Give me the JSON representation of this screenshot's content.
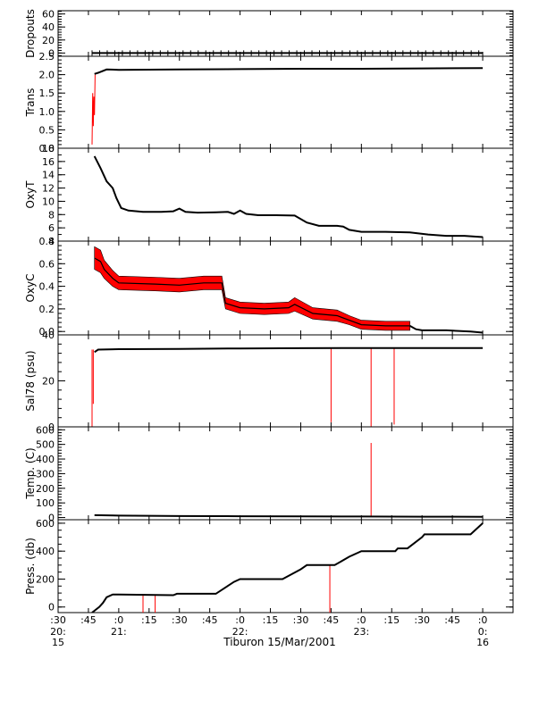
{
  "chart_data": {
    "type": "line",
    "title": "",
    "xlabel": "Tiburon 15/Mar/2001",
    "x_ticks": [
      {
        "h": 20.5,
        "top": ":30",
        "bottom": [
          "20:",
          "15"
        ]
      },
      {
        "h": 20.75,
        "top": ":45",
        "bottom": []
      },
      {
        "h": 21.0,
        "top": ":0",
        "bottom": [
          "21:"
        ]
      },
      {
        "h": 21.25,
        "top": ":15",
        "bottom": []
      },
      {
        "h": 21.5,
        "top": ":30",
        "bottom": []
      },
      {
        "h": 21.75,
        "top": ":45",
        "bottom": []
      },
      {
        "h": 22.0,
        "top": ":0",
        "bottom": [
          "22:"
        ]
      },
      {
        "h": 22.25,
        "top": ":15",
        "bottom": []
      },
      {
        "h": 22.5,
        "top": ":30",
        "bottom": []
      },
      {
        "h": 22.75,
        "top": ":45",
        "bottom": []
      },
      {
        "h": 23.0,
        "top": ":0",
        "bottom": [
          "23:"
        ]
      },
      {
        "h": 23.25,
        "top": ":15",
        "bottom": []
      },
      {
        "h": 23.5,
        "top": ":30",
        "bottom": []
      },
      {
        "h": 23.75,
        "top": ":45",
        "bottom": []
      },
      {
        "h": 24.0,
        "top": ":0",
        "bottom": [
          "0:",
          "16"
        ]
      }
    ],
    "xlim": [
      20.5,
      24.25
    ],
    "colors": {
      "primary": "#000000",
      "secondary": "#ff0000"
    },
    "panels": [
      {
        "ylabel": "Dropouts",
        "ylim": [
          -5,
          65
        ],
        "yticks": [
          0,
          20,
          40,
          60
        ],
        "ytick_labels": [
          "0",
          "20",
          "40",
          "60"
        ],
        "minor": 5,
        "series": [
          {
            "color": "black",
            "marker": "+",
            "x": [
              20.78,
              21.0,
              21.25,
              21.5,
              21.75,
              22.0,
              22.25,
              22.5,
              22.75,
              23.0,
              23.25,
              23.5,
              23.75,
              24.0
            ],
            "y": [
              0,
              0,
              0,
              0,
              0,
              0,
              0,
              0,
              0,
              0,
              0,
              0,
              0,
              0
            ]
          }
        ]
      },
      {
        "ylabel": "Trans",
        "ylim": [
          0,
          2.5
        ],
        "yticks": [
          0.0,
          0.5,
          1.0,
          1.5,
          2.0,
          2.5
        ],
        "ytick_labels": [
          "0.0",
          "0.5",
          "1.0",
          "1.5",
          "2.0",
          "2.5"
        ],
        "minor": 5,
        "series": [
          {
            "color": "red",
            "x": [
              20.78,
              20.785,
              20.79,
              20.795,
              20.8,
              20.805
            ],
            "y": [
              0.1,
              1.5,
              0.6,
              1.4,
              0.9,
              2.0
            ]
          },
          {
            "color": "black",
            "x": [
              20.8,
              20.83,
              20.9,
              21.0,
              21.5,
              22.0,
              22.5,
              23.0,
              23.5,
              24.0
            ],
            "y": [
              2.02,
              2.05,
              2.14,
              2.13,
              2.14,
              2.15,
              2.16,
              2.16,
              2.17,
              2.18
            ]
          }
        ]
      },
      {
        "ylabel": "OxyT",
        "ylim": [
          4,
          18
        ],
        "yticks": [
          4,
          6,
          8,
          10,
          12,
          14,
          16,
          18
        ],
        "ytick_labels": [
          "4",
          "6",
          "8",
          "10",
          "12",
          "14",
          "16",
          "18"
        ],
        "minor": 2,
        "series": [
          {
            "color": "black",
            "x": [
              20.8,
              20.85,
              20.9,
              20.95,
              20.98,
              21.02,
              21.08,
              21.2,
              21.35,
              21.45,
              21.5,
              21.55,
              21.65,
              21.8,
              21.9,
              21.95,
              22.0,
              22.05,
              22.15,
              22.3,
              22.45,
              22.55,
              22.65,
              22.8,
              22.85,
              22.9,
              23.0,
              23.2,
              23.4,
              23.55,
              23.7,
              23.85,
              24.0
            ],
            "y": [
              16.8,
              15.0,
              13.0,
              12.0,
              10.5,
              9.0,
              8.6,
              8.4,
              8.4,
              8.5,
              8.9,
              8.4,
              8.3,
              8.35,
              8.4,
              8.1,
              8.6,
              8.1,
              7.9,
              7.9,
              7.85,
              6.8,
              6.3,
              6.3,
              6.2,
              5.7,
              5.4,
              5.4,
              5.3,
              5.0,
              4.8,
              4.8,
              4.6
            ]
          }
        ]
      },
      {
        "ylabel": "OxyC",
        "ylim": [
          -0.03,
          0.8
        ],
        "yticks": [
          0.0,
          0.2,
          0.4,
          0.6,
          0.8
        ],
        "ytick_labels": [
          "0.0",
          "0.2",
          "0.4",
          "0.6",
          "0.8"
        ],
        "minor": 5,
        "series": [
          {
            "color": "red",
            "band": true,
            "x": [
              20.8,
              20.85,
              20.88,
              20.95,
              21.0,
              21.3,
              21.5,
              21.7,
              21.85,
              21.88,
              22.0,
              22.2,
              22.4,
              22.45,
              22.6,
              22.8,
              22.9,
              23.0,
              23.2,
              23.4
            ],
            "y": [
              0.65,
              0.62,
              0.55,
              0.47,
              0.43,
              0.42,
              0.41,
              0.43,
              0.43,
              0.25,
              0.21,
              0.2,
              0.21,
              0.24,
              0.16,
              0.14,
              0.1,
              0.06,
              0.05,
              0.05
            ],
            "spread": [
              0.1,
              0.1,
              0.08,
              0.07,
              0.06,
              0.06,
              0.06,
              0.06,
              0.06,
              0.05,
              0.05,
              0.05,
              0.05,
              0.06,
              0.05,
              0.05,
              0.04,
              0.04,
              0.04,
              0.04
            ]
          },
          {
            "color": "black",
            "x": [
              23.4,
              23.45,
              23.5,
              23.7,
              23.9,
              24.0
            ],
            "y": [
              0.05,
              0.02,
              0.01,
              0.01,
              0.0,
              -0.01
            ]
          }
        ]
      },
      {
        "ylabel": "Sal78 (psu)",
        "ylim": [
          0,
          40
        ],
        "yticks": [
          0,
          20,
          40
        ],
        "ytick_labels": [
          "0",
          "20",
          "40"
        ],
        "minor": 5,
        "series": [
          {
            "color": "red",
            "spikes": true,
            "x": [
              20.78,
              20.79,
              22.75,
              23.08,
              23.27
            ],
            "y0": [
              33.6,
              33.6,
              34.2,
              34.2,
              34.2
            ],
            "y": [
              0,
              10,
              2,
              0,
              1
            ]
          },
          {
            "color": "black",
            "x": [
              20.8,
              20.83,
              21.0,
              21.5,
              22.0,
              22.5,
              23.0,
              23.5,
              24.0
            ],
            "y": [
              32.5,
              33.6,
              33.8,
              33.9,
              34.1,
              34.2,
              34.3,
              34.3,
              34.3
            ]
          }
        ]
      },
      {
        "ylabel": "Temp. (C)",
        "ylim": [
          -15,
          620
        ],
        "yticks": [
          0,
          100,
          200,
          300,
          400,
          500,
          600
        ],
        "ytick_labels": [
          "0",
          "100",
          "200",
          "300",
          "400",
          "500",
          "600"
        ],
        "minor": 5,
        "series": [
          {
            "color": "red",
            "spikes": true,
            "x": [
              23.08
            ],
            "y0": [
              5
            ],
            "y": [
              510
            ]
          },
          {
            "color": "black",
            "x": [
              20.8,
              21.0,
              21.5,
              22.0,
              22.5,
              23.0,
              23.5,
              24.0
            ],
            "y": [
              16,
              13,
              10,
              9,
              8,
              7,
              6,
              5
            ]
          }
        ]
      },
      {
        "ylabel": "Press. (db)",
        "ylim": [
          -40,
          625
        ],
        "yticks": [
          0,
          200,
          400,
          600
        ],
        "ytick_labels": [
          "0",
          "200",
          "400",
          "600"
        ],
        "minor": 4,
        "series": [
          {
            "color": "red",
            "spikes": true,
            "x": [
              21.2,
              21.3,
              22.74
            ],
            "y0": [
              90,
              90,
              300
            ],
            "y": [
              -40,
              -40,
              -40
            ]
          },
          {
            "color": "black",
            "x": [
              20.78,
              20.84,
              20.87,
              20.9,
              20.95,
              21.0,
              21.45,
              21.48,
              21.8,
              21.95,
              22.0,
              22.35,
              22.5,
              22.55,
              22.78,
              22.9,
              23.0,
              23.28,
              23.3,
              23.38,
              23.5,
              23.52,
              23.9,
              24.0
            ],
            "y": [
              -40,
              0,
              30,
              70,
              90,
              90,
              85,
              95,
              95,
              180,
              200,
              200,
              270,
              300,
              300,
              360,
              400,
              400,
              420,
              420,
              500,
              520,
              520,
              600
            ]
          }
        ]
      }
    ]
  }
}
